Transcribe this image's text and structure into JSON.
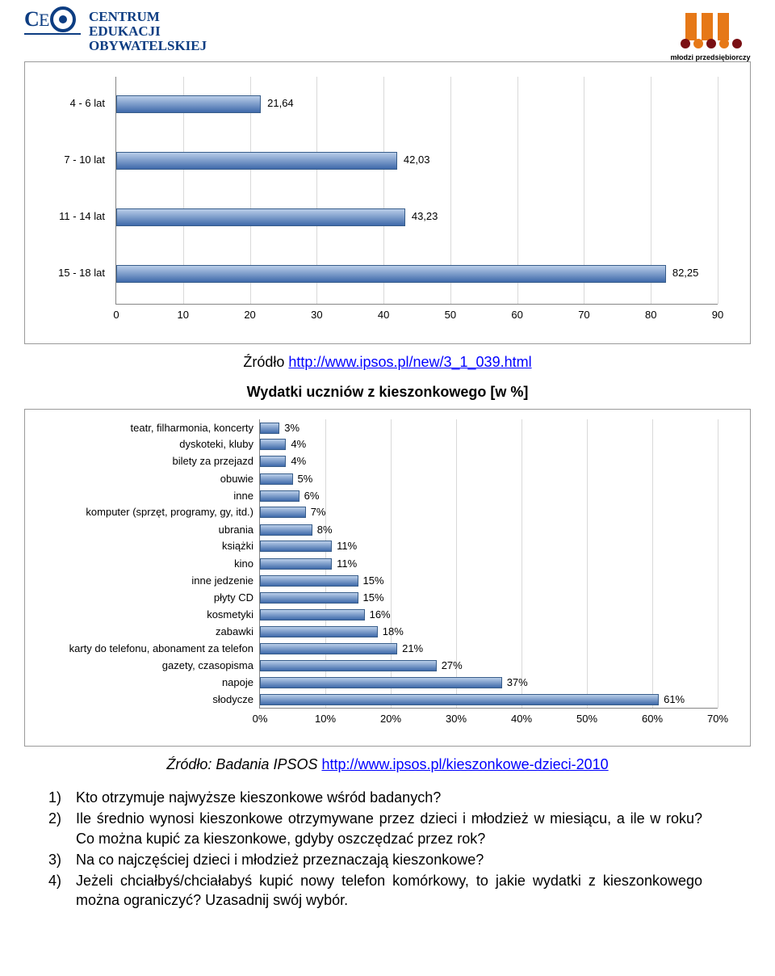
{
  "logo_left_caption": "CENTRUM EDUKACJI OBYWATELSKIEJ",
  "logo_right_caption": "młodzi przedsiębiorczy",
  "chart1": {
    "type": "bar-horizontal",
    "categories": [
      "4 - 6 lat",
      "7 - 10 lat",
      "11 - 14 lat",
      "15 - 18 lat"
    ],
    "values": [
      21.64,
      42.03,
      43.23,
      82.25
    ],
    "value_labels": [
      "21,64",
      "42,03",
      "43,23",
      "82,25"
    ],
    "row_spacing_pct": [
      12,
      37,
      62,
      87
    ],
    "xmin": 0,
    "xmax": 90,
    "xtick_step": 10,
    "xticks": [
      0,
      10,
      20,
      30,
      40,
      50,
      60,
      70,
      80,
      90
    ],
    "bar_fill_top": "#b9cee9",
    "bar_fill_bottom": "#3f6aaa",
    "bar_border": "#385d8a",
    "grid_color": "#d9d9d9",
    "axis_color": "#868686",
    "cat_fontsize": 13,
    "val_fontsize": 13
  },
  "source1_prefix": "Źródło ",
  "source1_url": "http://www.ipsos.pl/new/3_1_039.html",
  "chart2_title": "Wydatki uczniów z kieszonkowego [w %]",
  "chart2": {
    "type": "bar-horizontal",
    "categories": [
      "teatr, filharmonia, koncerty",
      "dyskoteki, kluby",
      "bilety za przejazd",
      "obuwie",
      "inne",
      "komputer (sprzęt, programy, gy, itd.)",
      "ubrania",
      "książki",
      "kino",
      "inne jedzenie",
      "płyty CD",
      "kosmetyki",
      "zabawki",
      "karty do telefonu, abonament za telefon",
      "gazety, czasopisma",
      "napoje",
      "słodycze"
    ],
    "values": [
      3,
      4,
      4,
      5,
      6,
      7,
      8,
      11,
      11,
      15,
      15,
      16,
      18,
      21,
      27,
      37,
      61
    ],
    "value_labels": [
      "3%",
      "4%",
      "4%",
      "5%",
      "6%",
      "7%",
      "8%",
      "11%",
      "11%",
      "15%",
      "15%",
      "16%",
      "18%",
      "21%",
      "27%",
      "37%",
      "61%"
    ],
    "xmin": 0,
    "xmax": 70,
    "xtick_step": 10,
    "xticks": [
      "0%",
      "10%",
      "20%",
      "30%",
      "40%",
      "50%",
      "60%",
      "70%"
    ],
    "bar_fill_top": "#b9cee9",
    "bar_fill_bottom": "#3f6aaa",
    "bar_border": "#385d8a",
    "grid_color": "#d9d9d9",
    "axis_color": "#868686",
    "cat_fontsize": 13,
    "val_fontsize": 13
  },
  "source2_prefix": "Źródło: Badania IPSOS ",
  "source2_url": "http://www.ipsos.pl/kieszonkowe-dzieci-2010",
  "questions": [
    "Kto otrzymuje najwyższe kieszonkowe wśród badanych?",
    "Ile średnio wynosi kieszonkowe otrzymywane przez dzieci i młodzież w miesiącu, a ile w roku? Co można kupić za kieszonkowe, gdyby oszczędzać przez rok?",
    "Na co najczęściej dzieci i młodzież przeznaczają kieszonkowe?",
    "Jeżeli chciałbyś/chciałabyś kupić nowy telefon komórkowy, to jakie wydatki z kieszonkowego można ograniczyć? Uzasadnij swój wybór."
  ],
  "question_numbers": [
    "1)",
    "2)",
    "3)",
    "4)"
  ]
}
